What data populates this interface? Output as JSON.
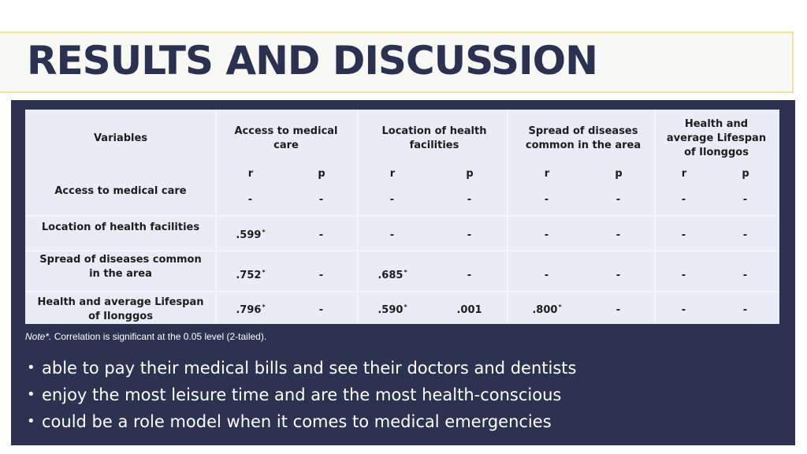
{
  "title": "RESULTS AND DISCUSSION",
  "table": {
    "header_variables": "Variables",
    "column_groups": [
      {
        "line1": "Access to medical",
        "line2": "care",
        "line3": ""
      },
      {
        "line1": "Location of health",
        "line2": "facilities",
        "line3": ""
      },
      {
        "line1": "Spread of diseases",
        "line2": "common in the area",
        "line3": ""
      },
      {
        "line1": "Health and",
        "line2": "average Lifespan",
        "line3": "of Ilonggos"
      }
    ],
    "subheaders": [
      "r",
      "p",
      "r",
      "p",
      "r",
      "p",
      "r",
      "p"
    ],
    "rows": [
      {
        "label1": "Access to medical care",
        "label2": "",
        "cells": [
          {
            "v": "-",
            "s": ""
          },
          {
            "v": "-",
            "s": ""
          },
          {
            "v": "-",
            "s": ""
          },
          {
            "v": "-",
            "s": ""
          },
          {
            "v": "-",
            "s": ""
          },
          {
            "v": "-",
            "s": ""
          },
          {
            "v": "-",
            "s": ""
          },
          {
            "v": "-",
            "s": ""
          }
        ]
      },
      {
        "label1": "Location of health facilities",
        "label2": "",
        "cells": [
          {
            "v": ".599",
            "s": "*"
          },
          {
            "v": "-",
            "s": ""
          },
          {
            "v": "-",
            "s": ""
          },
          {
            "v": "-",
            "s": ""
          },
          {
            "v": "-",
            "s": ""
          },
          {
            "v": "-",
            "s": ""
          },
          {
            "v": "-",
            "s": ""
          },
          {
            "v": "-",
            "s": ""
          }
        ]
      },
      {
        "label1": "Spread of diseases common",
        "label2": "in the area",
        "cells": [
          {
            "v": ".752",
            "s": "*"
          },
          {
            "v": "-",
            "s": ""
          },
          {
            "v": ".685",
            "s": "*"
          },
          {
            "v": "-",
            "s": ""
          },
          {
            "v": "-",
            "s": ""
          },
          {
            "v": "-",
            "s": ""
          },
          {
            "v": "-",
            "s": ""
          },
          {
            "v": "-",
            "s": ""
          }
        ]
      },
      {
        "label1": "Health and average Lifespan",
        "label2": "of Ilonggos",
        "cells": [
          {
            "v": ".796",
            "s": "*"
          },
          {
            "v": "-",
            "s": ""
          },
          {
            "v": ".590",
            "s": "*"
          },
          {
            "v": ".001",
            "s": ""
          },
          {
            "v": ".800",
            "s": "*"
          },
          {
            "v": "-",
            "s": ""
          },
          {
            "v": "-",
            "s": ""
          },
          {
            "v": "-",
            "s": ""
          }
        ]
      }
    ]
  },
  "note": {
    "prefix": "Note*.",
    "text": " Correlation is significant at the 0.05 level (2-tailed)."
  },
  "bullets": [
    "able to pay their medical bills and see their doctors and dentists",
    "enjoy the most leisure time and are the most health-conscious",
    "could be a role model when it comes to medical emergencies"
  ],
  "bullet_glyph": "•"
}
